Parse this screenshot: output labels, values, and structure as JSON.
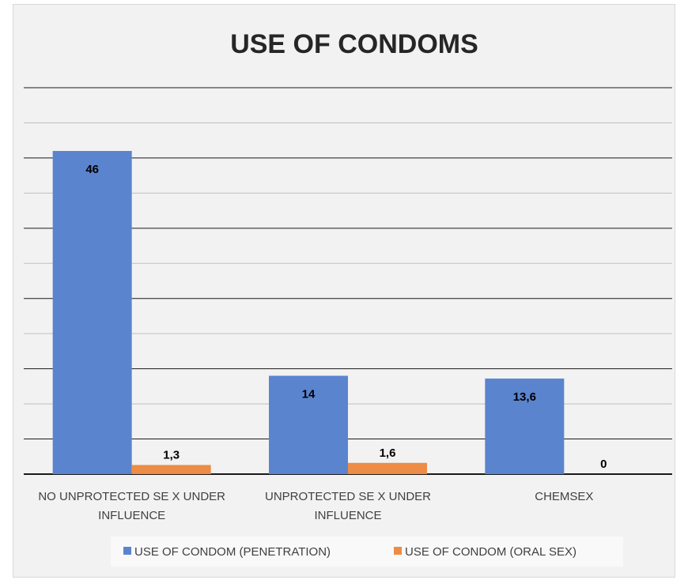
{
  "chart_data": {
    "type": "bar",
    "title": "USE OF CONDOMS",
    "categories": [
      [
        "NO UNPROTECTED SE X UNDER",
        "INFLUENCE"
      ],
      [
        "UNPROTECTED SE X UNDER",
        "INFLUENCE"
      ],
      [
        "CHEMSEX"
      ]
    ],
    "series": [
      {
        "name": "USE OF CONDOM (PENETRATION)",
        "color": "#5b84cf",
        "values": [
          46,
          14,
          13.6
        ],
        "labels": [
          "46",
          "14",
          "13,6"
        ]
      },
      {
        "name": "USE OF CONDOM (ORAL SEX)",
        "color": "#ed8c46",
        "values": [
          1.3,
          1.6,
          0
        ],
        "labels": [
          "1,3",
          "1,6",
          "0"
        ]
      }
    ],
    "ylim": [
      0,
      55
    ],
    "gridlines": true,
    "y_tick_labels_visible": false,
    "legend_position": "bottom"
  }
}
